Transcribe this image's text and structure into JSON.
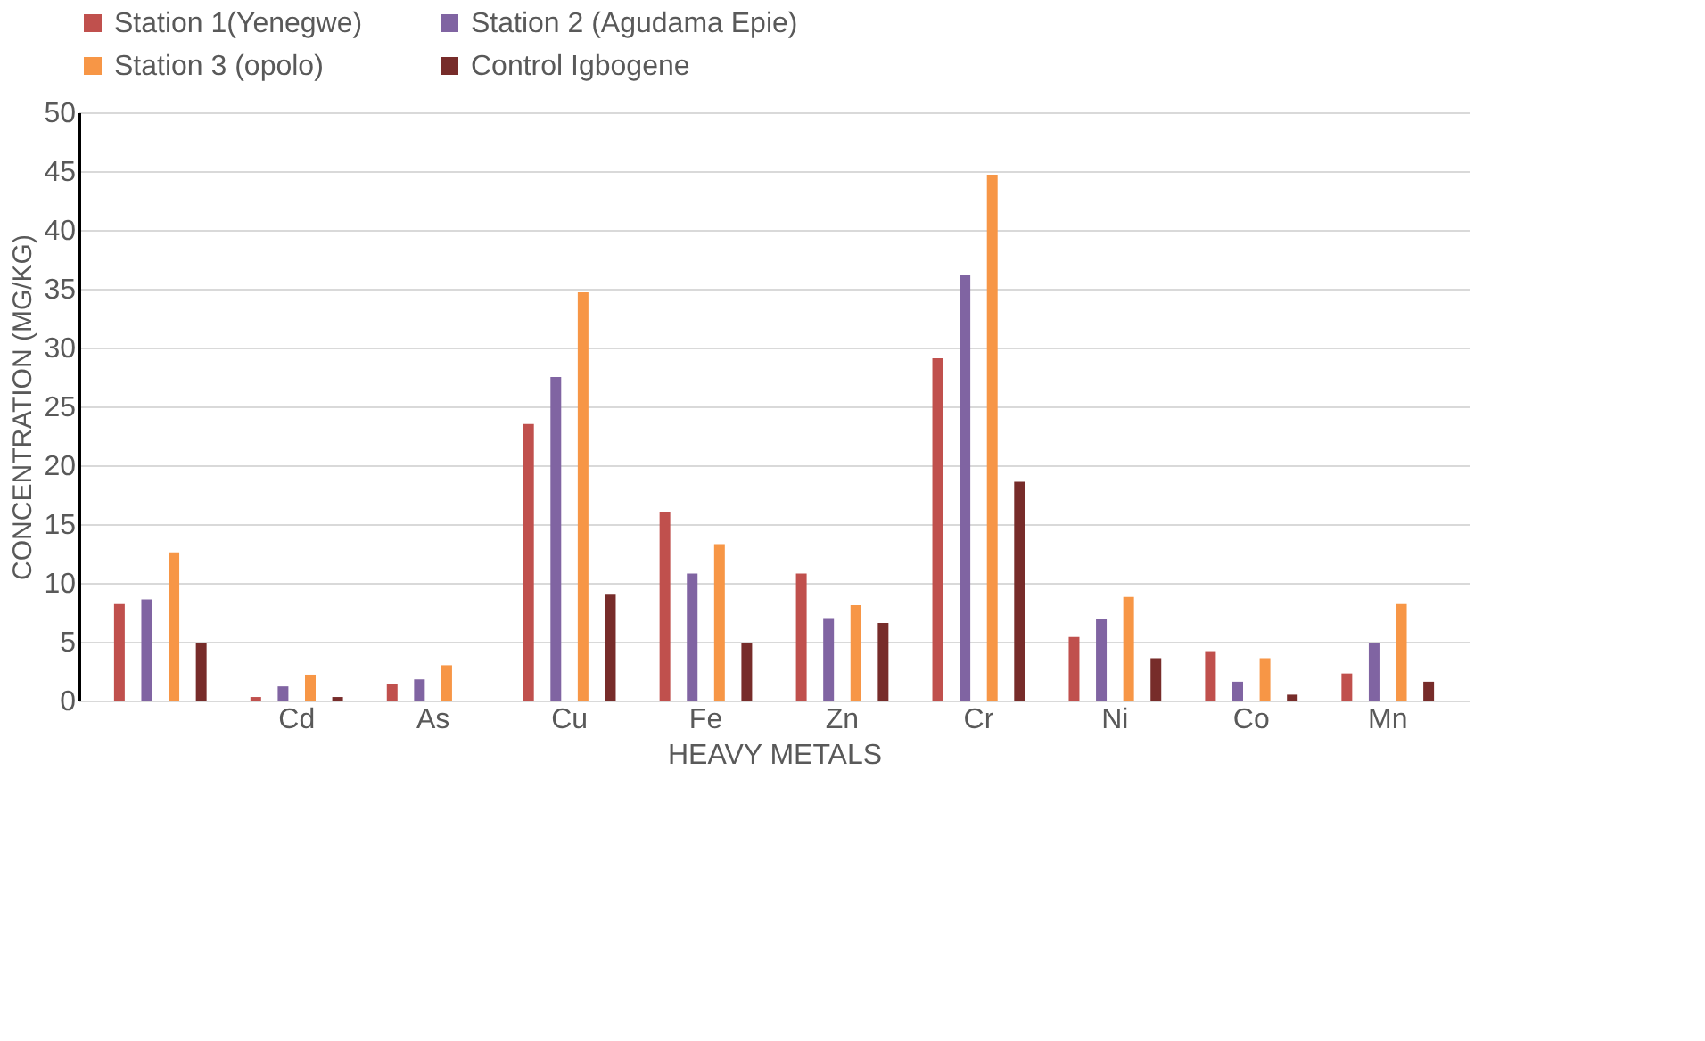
{
  "chart_data": {
    "type": "bar",
    "xlabel": "HEAVY METALS",
    "ylabel": "CONCENTRATION (MG/KG)",
    "categories": [
      null,
      "Cd",
      "As",
      "Cu",
      "Fe",
      "Zn",
      "Cr",
      "Ni",
      "Co",
      "Mn"
    ],
    "series": [
      {
        "name": "Station 1(Yenegwe)",
        "color": "#c0504d",
        "values": [
          8.2,
          0.3,
          1.4,
          23.5,
          16.0,
          10.8,
          29.1,
          5.4,
          4.2,
          2.3
        ]
      },
      {
        "name": "Station 2 (Agudama Epie)",
        "color": "#8064a2",
        "values": [
          8.6,
          1.2,
          1.8,
          27.5,
          10.8,
          7.0,
          36.2,
          6.9,
          1.6,
          4.9
        ]
      },
      {
        "name": "Station 3 (opolo)",
        "color": "#f79646",
        "values": [
          12.6,
          2.2,
          3.0,
          34.7,
          13.3,
          8.1,
          44.7,
          8.8,
          3.6,
          8.2
        ]
      },
      {
        "name": "Control Igbogene",
        "color": "#772c2a",
        "values": [
          4.9,
          0.3,
          0.0,
          9.0,
          4.9,
          6.6,
          18.6,
          3.6,
          0.5,
          1.6
        ]
      }
    ],
    "ylim": [
      0,
      50
    ],
    "yticks": [
      0,
      5,
      10,
      15,
      20,
      25,
      30,
      35,
      40,
      45,
      50
    ],
    "grid": "y",
    "legend": "top"
  }
}
